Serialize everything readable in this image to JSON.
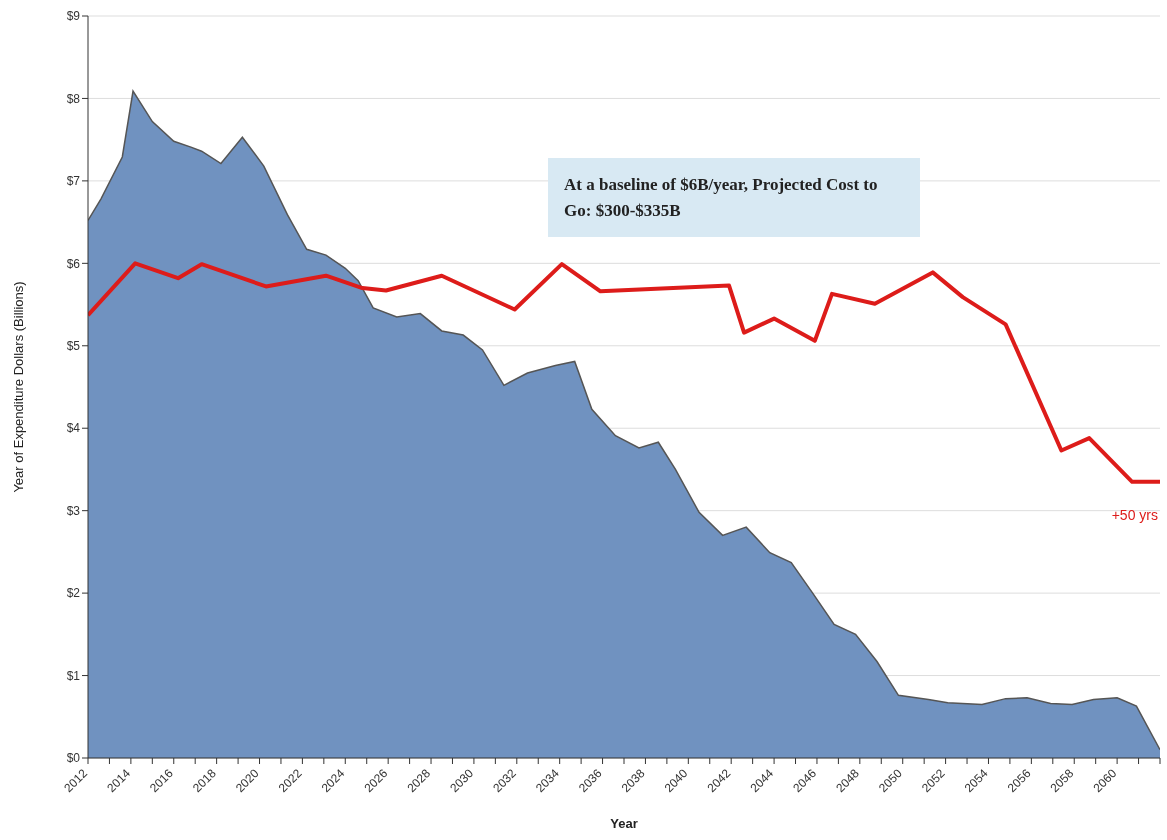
{
  "chart_data": {
    "type": "area",
    "xlabel": "Year",
    "ylabel": "Year of Expenditure Dollars (Billions)",
    "annotations": [
      "At a baseline of $6B/year, Projected Cost to Go: $300-$335B",
      "+50 yrs"
    ],
    "series": [
      {
        "color": "#7092c0",
        "x": [
          2012,
          2012.6,
          2013.6,
          2014.1,
          2015,
          2016,
          2016.8,
          2017.3,
          2018.2,
          2019.2,
          2020.2,
          2021.3,
          2022.2,
          2023.1,
          2024,
          2024.6,
          2025.3,
          2026.4,
          2027.5,
          2028.5,
          2029.5,
          2030.4,
          2031.4,
          2032.5,
          2033.8,
          2034.7,
          2035.5,
          2036.6,
          2037.7,
          2038.6,
          2039.4,
          2040.5,
          2041.6,
          2042.7,
          2043.8,
          2044.8,
          2045.8,
          2046.8,
          2047.8,
          2048.8,
          2049.8,
          2051.2,
          2052.1,
          2053.7,
          2054.8,
          2055.8,
          2056.9,
          2057.9,
          2058.9,
          2060,
          2060.9,
          2062
        ],
        "values": [
          6.52,
          6.78,
          7.29,
          8.09,
          7.72,
          7.48,
          7.41,
          7.36,
          7.21,
          7.53,
          7.18,
          6.59,
          6.17,
          6.1,
          5.94,
          5.79,
          5.46,
          5.35,
          5.39,
          5.18,
          5.13,
          4.95,
          4.52,
          4.67,
          4.76,
          4.81,
          4.23,
          3.91,
          3.76,
          3.83,
          3.5,
          2.98,
          2.7,
          2.8,
          2.49,
          2.37,
          2.0,
          1.62,
          1.5,
          1.17,
          0.76,
          0.71,
          0.67,
          0.65,
          0.72,
          0.73,
          0.66,
          0.65,
          0.71,
          0.73,
          0.63,
          0.1
        ]
      },
      {
        "type": "line",
        "color": "#dd1c1a",
        "x": [
          2012,
          2014.2,
          2016.2,
          2017.3,
          2020.3,
          2023.1,
          2024.8,
          2025.9,
          2028.5,
          2031.9,
          2034.1,
          2035.9,
          2041.9,
          2042.6,
          2044,
          2045.9,
          2046.7,
          2048.7,
          2051.4,
          2052.8,
          2054.8,
          2057.4,
          2058.7,
          2060.7,
          2062
        ],
        "values": [
          5.37,
          6.0,
          5.82,
          5.99,
          5.72,
          5.85,
          5.7,
          5.67,
          5.85,
          5.44,
          5.99,
          5.66,
          5.73,
          5.16,
          5.33,
          5.06,
          5.63,
          5.51,
          5.89,
          5.59,
          5.26,
          3.73,
          3.88,
          3.35,
          3.35
        ]
      }
    ],
    "xlim": [
      2012,
      2062
    ],
    "xticks": [
      2012,
      {
        "value": 2013,
        "label": null
      },
      2014,
      {
        "value": 2015,
        "label": null
      },
      2016,
      {
        "value": 2017,
        "label": null
      },
      2018,
      {
        "value": 2019,
        "label": null
      },
      2020,
      {
        "value": 2021,
        "label": null
      },
      2022,
      {
        "value": 2023,
        "label": null
      },
      2024,
      {
        "value": 2025,
        "label": null
      },
      2026,
      {
        "value": 2027,
        "label": null
      },
      2028,
      {
        "value": 2029,
        "label": null
      },
      2030,
      {
        "value": 2031,
        "label": null
      },
      2032,
      {
        "value": 2033,
        "label": null
      },
      2034,
      {
        "value": 2035,
        "label": null
      },
      2036,
      {
        "value": 2037,
        "label": null
      },
      2038,
      {
        "value": 2039,
        "label": null
      },
      2040,
      {
        "value": 2041,
        "label": null
      },
      2042,
      {
        "value": 2043,
        "label": null
      },
      2044,
      {
        "value": 2045,
        "label": null
      },
      2046,
      {
        "value": 2047,
        "label": null
      },
      2048,
      {
        "value": 2049,
        "label": null
      },
      2050,
      {
        "value": 2051,
        "label": null
      },
      2052,
      {
        "value": 2053,
        "label": null
      },
      2054,
      {
        "value": 2055,
        "label": null
      },
      2056,
      {
        "value": 2057,
        "label": null
      },
      2058,
      {
        "value": 2059,
        "label": null
      },
      2060,
      {
        "value": 2061,
        "label": null
      },
      {
        "value": 2062,
        "label": null
      }
    ],
    "ylim": [
      0,
      9
    ],
    "yticks": [
      {
        "value": 0,
        "label": "$0"
      },
      {
        "value": 1,
        "label": "$1"
      },
      {
        "value": 2,
        "label": "$2"
      },
      {
        "value": 3,
        "label": "$3"
      },
      {
        "value": 4,
        "label": "$4"
      },
      {
        "value": 5,
        "label": "$5"
      },
      {
        "value": 6,
        "label": "$6"
      },
      {
        "value": 7,
        "label": "$7"
      },
      {
        "value": 8,
        "label": "$8"
      },
      {
        "value": 9,
        "label": "$9"
      }
    ],
    "grid": "y"
  }
}
